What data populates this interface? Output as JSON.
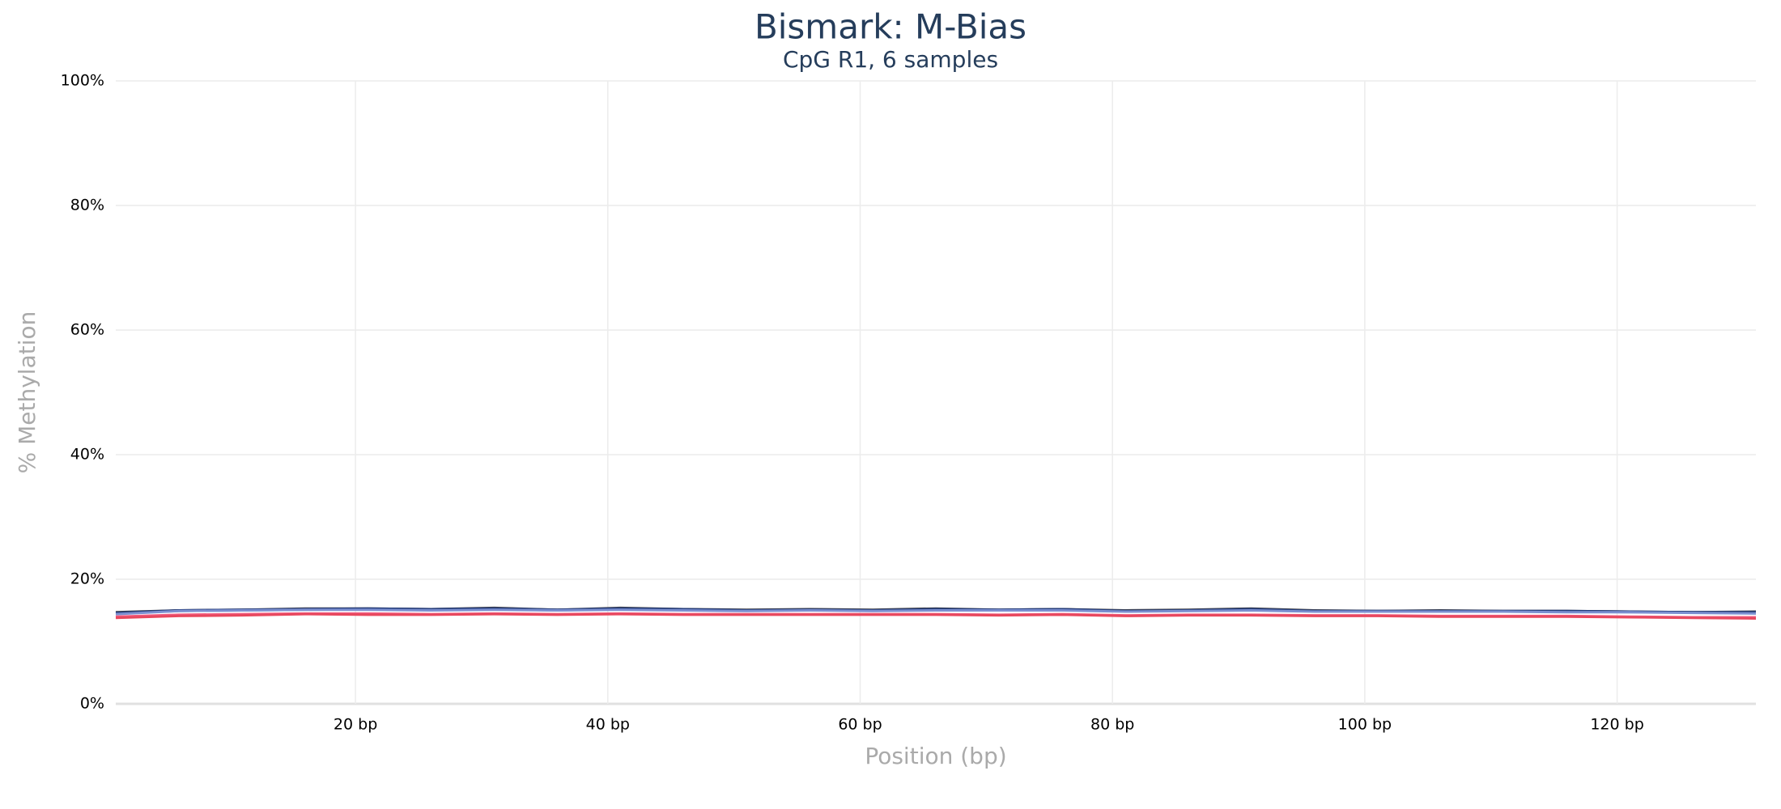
{
  "chart_data": {
    "type": "line",
    "title": "Bismark: M-Bias",
    "subtitle": "CpG R1, 6 samples",
    "x_label": "Position (bp)",
    "y_label": "% Methylation",
    "x": [
      1,
      6,
      11,
      16,
      21,
      26,
      31,
      36,
      41,
      46,
      51,
      56,
      61,
      66,
      71,
      76,
      81,
      86,
      91,
      96,
      101,
      106,
      111,
      116,
      121,
      126,
      131
    ],
    "xlim": [
      1,
      131
    ],
    "xticks": [
      {
        "value": 20,
        "label": "20 bp"
      },
      {
        "value": 40,
        "label": "40 bp"
      },
      {
        "value": 60,
        "label": "60 bp"
      },
      {
        "value": 80,
        "label": "80 bp"
      },
      {
        "value": 100,
        "label": "100 bp"
      },
      {
        "value": 120,
        "label": "120 bp"
      }
    ],
    "ylim": [
      0,
      100
    ],
    "yticks": [
      {
        "value": 0,
        "label": "0%"
      },
      {
        "value": 20,
        "label": "20%"
      },
      {
        "value": 40,
        "label": "40%"
      },
      {
        "value": 60,
        "label": "60%"
      },
      {
        "value": 80,
        "label": "80%"
      },
      {
        "value": 100,
        "label": "100%"
      }
    ],
    "grid": true,
    "series": [
      {
        "color": "#8aa0c8",
        "values": [
          14.5,
          14.9,
          15.0,
          15.1,
          15.2,
          15.1,
          15.2,
          15.0,
          15.2,
          15.1,
          15.0,
          15.0,
          15.0,
          15.1,
          15.0,
          15.1,
          14.9,
          15.0,
          15.1,
          14.9,
          14.9,
          14.8,
          14.8,
          14.8,
          14.7,
          14.7,
          14.6
        ]
      },
      {
        "color": "#434348",
        "values": [
          14.7,
          15.0,
          15.1,
          15.3,
          15.3,
          15.2,
          15.4,
          15.1,
          15.4,
          15.2,
          15.1,
          15.2,
          15.1,
          15.3,
          15.1,
          15.2,
          15.0,
          15.1,
          15.3,
          15.0,
          14.9,
          15.0,
          14.9,
          14.9,
          14.8,
          14.7,
          14.8
        ]
      },
      {
        "color": "#253d7b",
        "values": [
          14.6,
          15.0,
          15.1,
          15.2,
          15.3,
          15.2,
          15.3,
          15.1,
          15.3,
          15.2,
          15.0,
          15.1,
          15.0,
          15.2,
          15.1,
          15.2,
          14.9,
          15.0,
          15.2,
          14.9,
          14.9,
          14.9,
          14.9,
          14.9,
          14.8,
          14.7,
          14.7
        ]
      },
      {
        "color": "#7b8fd0",
        "values": [
          14.4,
          14.9,
          15.0,
          15.1,
          15.1,
          15.0,
          15.1,
          15.0,
          15.1,
          15.0,
          14.9,
          15.0,
          14.9,
          15.0,
          15.0,
          15.0,
          14.8,
          14.9,
          15.0,
          14.8,
          14.8,
          14.8,
          14.8,
          14.7,
          14.7,
          14.6,
          14.5
        ]
      },
      {
        "color": "#f15c80",
        "values": [
          14.0,
          14.3,
          14.4,
          14.5,
          14.5,
          14.4,
          14.5,
          14.4,
          14.5,
          14.4,
          14.4,
          14.4,
          14.4,
          14.4,
          14.3,
          14.4,
          14.2,
          14.3,
          14.3,
          14.2,
          14.2,
          14.1,
          14.1,
          14.1,
          14.0,
          13.9,
          13.9
        ]
      },
      {
        "color": "#e8485e",
        "values": [
          13.8,
          14.1,
          14.2,
          14.4,
          14.3,
          14.3,
          14.4,
          14.3,
          14.4,
          14.3,
          14.3,
          14.3,
          14.3,
          14.3,
          14.2,
          14.3,
          14.1,
          14.2,
          14.2,
          14.1,
          14.1,
          14.0,
          14.0,
          14.0,
          13.9,
          13.8,
          13.7
        ]
      }
    ]
  }
}
